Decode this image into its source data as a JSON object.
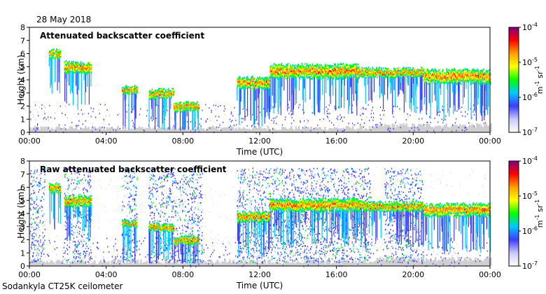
{
  "date_label": "28 May 2018",
  "footer": "Sodankyla CT25K ceilometer",
  "chart_data": [
    {
      "type": "heatmap",
      "title": "Attenuated backscatter coefficient",
      "xlabel": "Time (UTC)",
      "ylabel": "Height (km)",
      "xlim": [
        0,
        24
      ],
      "ylim": [
        0,
        8
      ],
      "x_ticks": [
        "00:00",
        "04:00",
        "08:00",
        "12:00",
        "16:00",
        "20:00",
        "00:00"
      ],
      "y_ticks": [
        "0",
        "1",
        "2",
        "3",
        "4",
        "5",
        "6",
        "7",
        "8"
      ],
      "colorbar": {
        "scale": "log",
        "unit": "m-1 sr-1",
        "ticks": [
          {
            "exp": "-7",
            "value": 1e-07
          },
          {
            "exp": "-6",
            "value": 1e-06
          },
          {
            "exp": "-5",
            "value": 1e-05
          },
          {
            "exp": "-4",
            "value": 0.0001
          }
        ],
        "colors": [
          "#ffffff",
          "#c8c8ff",
          "#3c3cff",
          "#00c8ff",
          "#00ff00",
          "#ffff00",
          "#ffa000",
          "#ff0000",
          "#800080"
        ]
      },
      "cloud_layers": [
        {
          "t_start": 1.0,
          "t_end": 1.6,
          "height": 6.0,
          "thickness": 0.5
        },
        {
          "t_start": 1.8,
          "t_end": 3.2,
          "height": 5.0,
          "thickness": 0.7
        },
        {
          "t_start": 4.8,
          "t_end": 5.6,
          "height": 3.3,
          "thickness": 0.4
        },
        {
          "t_start": 6.2,
          "t_end": 7.5,
          "height": 3.0,
          "thickness": 0.5
        },
        {
          "t_start": 7.5,
          "t_end": 8.8,
          "height": 2.0,
          "thickness": 0.5
        },
        {
          "t_start": 10.8,
          "t_end": 12.5,
          "height": 3.8,
          "thickness": 0.7
        },
        {
          "t_start": 12.5,
          "t_end": 17.2,
          "height": 4.7,
          "thickness": 0.9
        },
        {
          "t_start": 17.2,
          "t_end": 20.5,
          "height": 4.6,
          "thickness": 0.5
        },
        {
          "t_start": 20.5,
          "t_end": 24.0,
          "height": 4.3,
          "thickness": 0.9
        }
      ]
    },
    {
      "type": "heatmap",
      "title": "Raw attenuated backscatter coefficient",
      "xlabel": "Time (UTC)",
      "ylabel": "Height (km)",
      "xlim": [
        0,
        24
      ],
      "ylim": [
        0,
        8
      ],
      "x_ticks": [
        "00:00",
        "04:00",
        "08:00",
        "12:00",
        "16:00",
        "20:00",
        "00:00"
      ],
      "y_ticks": [
        "0",
        "1",
        "2",
        "3",
        "4",
        "5",
        "6",
        "7",
        "8"
      ],
      "colorbar": {
        "scale": "log",
        "unit": "m-1 sr-1",
        "ticks": [
          {
            "exp": "-7",
            "value": 1e-07
          },
          {
            "exp": "-6",
            "value": 1e-06
          },
          {
            "exp": "-5",
            "value": 1e-05
          },
          {
            "exp": "-4",
            "value": 0.0001
          }
        ],
        "colors": [
          "#ffffff",
          "#c8c8ff",
          "#3c3cff",
          "#00c8ff",
          "#00ff00",
          "#ffff00",
          "#ffa000",
          "#ff0000",
          "#800080"
        ]
      },
      "noise_bands": [
        {
          "t_start": 0.0,
          "t_end": 0.8
        },
        {
          "t_start": 1.8,
          "t_end": 3.2
        },
        {
          "t_start": 4.8,
          "t_end": 5.6
        },
        {
          "t_start": 6.2,
          "t_end": 9.0
        },
        {
          "t_start": 10.8,
          "t_end": 17.8
        },
        {
          "t_start": 18.5,
          "t_end": 20.5
        }
      ],
      "cloud_layers": [
        {
          "t_start": 1.0,
          "t_end": 1.6,
          "height": 6.0,
          "thickness": 0.5
        },
        {
          "t_start": 1.8,
          "t_end": 3.2,
          "height": 5.0,
          "thickness": 0.6
        },
        {
          "t_start": 4.8,
          "t_end": 5.6,
          "height": 3.3,
          "thickness": 0.3
        },
        {
          "t_start": 6.2,
          "t_end": 7.5,
          "height": 3.0,
          "thickness": 0.4
        },
        {
          "t_start": 7.5,
          "t_end": 8.8,
          "height": 2.0,
          "thickness": 0.4
        },
        {
          "t_start": 10.8,
          "t_end": 12.5,
          "height": 3.8,
          "thickness": 0.6
        },
        {
          "t_start": 12.5,
          "t_end": 17.2,
          "height": 4.7,
          "thickness": 0.8
        },
        {
          "t_start": 17.2,
          "t_end": 20.5,
          "height": 4.6,
          "thickness": 0.5
        },
        {
          "t_start": 20.5,
          "t_end": 24.0,
          "height": 4.3,
          "thickness": 0.8
        }
      ]
    }
  ]
}
